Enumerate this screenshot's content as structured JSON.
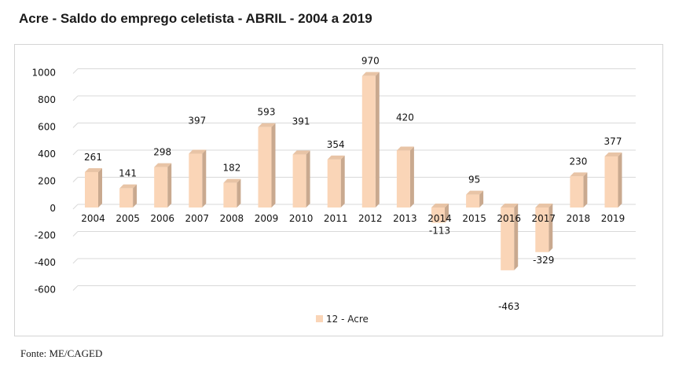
{
  "title": "Acre - Saldo do emprego celetista - ABRIL - 2004 a 2019",
  "source": "Fonte: ME/CAGED",
  "colors": {
    "bar_front": "#fad5b7",
    "bar_side": "#c9a98f",
    "bar_top": "#e8c4a6",
    "grid": "#d9d9d9"
  },
  "chart_data": {
    "type": "bar",
    "title": "Acre - Saldo do emprego celetista - ABRIL - 2004 a 2019",
    "categories": [
      "2004",
      "2005",
      "2006",
      "2007",
      "2008",
      "2009",
      "2010",
      "2011",
      "2012",
      "2013",
      "2014",
      "2015",
      "2016",
      "2017",
      "2018",
      "2019"
    ],
    "series": [
      {
        "name": "12 - Acre",
        "values": [
          261,
          141,
          298,
          397,
          182,
          593,
          391,
          354,
          970,
          420,
          -113,
          95,
          -463,
          -329,
          230,
          377
        ]
      }
    ],
    "data_labels": [
      "261",
      "141",
      "298",
      "397",
      "182",
      "593",
      "391",
      "354",
      "970",
      "420",
      "-113",
      "95",
      "-463",
      "-329",
      "230",
      "377"
    ],
    "yticks": [
      1000,
      800,
      600,
      400,
      200,
      0,
      -200,
      -400,
      -600
    ],
    "ytick_labels": [
      "1000",
      "800",
      "600",
      "400",
      "200",
      "0",
      "-200",
      "-400",
      "-600"
    ],
    "ylim": [
      -600,
      1000
    ],
    "xlabel": "",
    "ylabel": "",
    "grid": true,
    "legend": {
      "position": "bottom",
      "label": "12 - Acre"
    }
  }
}
